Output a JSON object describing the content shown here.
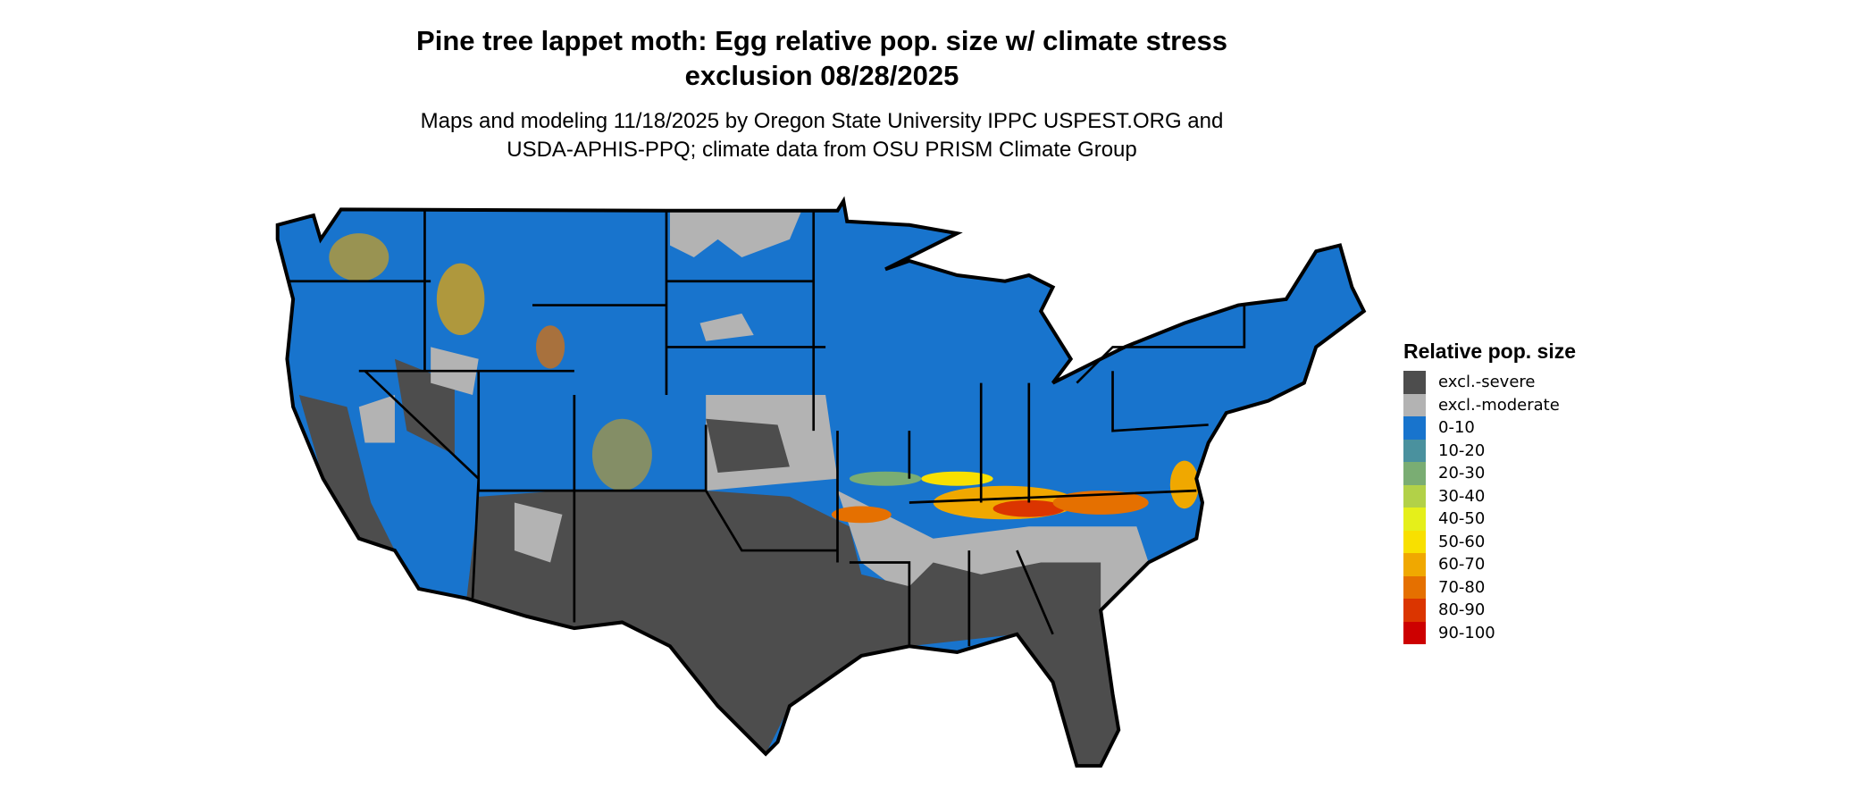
{
  "header": {
    "title_line1": "Pine tree lappet moth: Egg relative pop. size w/ climate stress",
    "title_line2": "exclusion 08/28/2025",
    "subtitle_line1": "Maps and modeling 11/18/2025 by Oregon State University IPPC USPEST.ORG and",
    "subtitle_line2": "USDA-APHIS-PPQ; climate data from OSU PRISM Climate Group"
  },
  "legend": {
    "title": "Relative pop. size",
    "items": [
      {
        "label": "excl.-severe",
        "color": "#4d4d4d"
      },
      {
        "label": "excl.-moderate",
        "color": "#b3b3b3"
      },
      {
        "label": "0-10",
        "color": "#1874cd"
      },
      {
        "label": "10-20",
        "color": "#4a919e"
      },
      {
        "label": "20-30",
        "color": "#7aad73"
      },
      {
        "label": "30-40",
        "color": "#b2d148"
      },
      {
        "label": "40-50",
        "color": "#e5ef1a"
      },
      {
        "label": "50-60",
        "color": "#f8e000"
      },
      {
        "label": "60-70",
        "color": "#f0a800"
      },
      {
        "label": "70-80",
        "color": "#e57000"
      },
      {
        "label": "80-90",
        "color": "#db3500"
      },
      {
        "label": "90-100",
        "color": "#cd0000"
      }
    ]
  },
  "chart_data": {
    "type": "map",
    "region": "Conterminous United States",
    "title": "Pine tree lappet moth: Egg relative pop. size w/ climate stress exclusion 08/28/2025",
    "legend_title": "Relative pop. size",
    "categories": [
      "excl.-severe",
      "excl.-moderate",
      "0-10",
      "10-20",
      "20-30",
      "30-40",
      "40-50",
      "50-60",
      "60-70",
      "70-80",
      "80-90",
      "90-100"
    ],
    "legend_placement": "right"
  }
}
